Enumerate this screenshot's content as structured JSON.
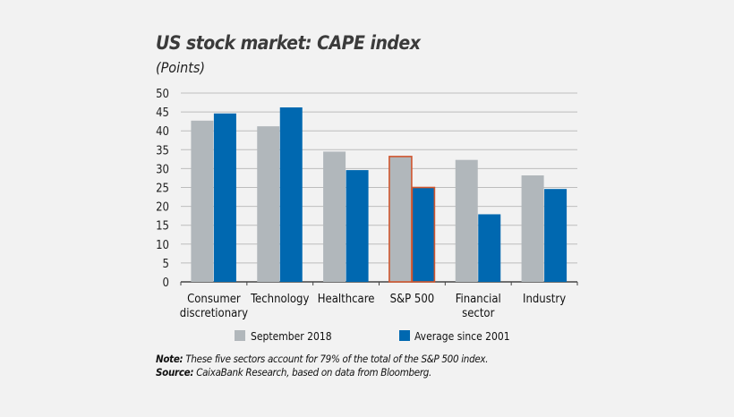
{
  "chart_data": {
    "type": "bar",
    "title": "US stock market: CAPE index",
    "subtitle": "(Points)",
    "categories": [
      [
        "Consumer",
        "discretionary"
      ],
      [
        "Technology"
      ],
      [
        "Healthcare"
      ],
      [
        "S&P 500"
      ],
      [
        "Financial",
        "sector"
      ],
      [
        "Industry"
      ]
    ],
    "series": [
      {
        "name": "September 2018",
        "color": "#b1b7bb",
        "values": [
          42.7,
          41.2,
          34.5,
          33.2,
          32.3,
          28.2
        ]
      },
      {
        "name": "Average since 2001",
        "color": "#0068b0",
        "values": [
          44.6,
          46.2,
          29.6,
          25.0,
          17.9,
          24.6
        ]
      }
    ],
    "highlight_category": "S&P 500",
    "highlight_color": "#d0562f",
    "ylim": [
      0,
      50
    ],
    "yticks": [
      0,
      5,
      10,
      15,
      20,
      25,
      30,
      35,
      40,
      45,
      50
    ],
    "grid": true,
    "legend_placement": "bottom"
  },
  "note": {
    "note_label": "Note:",
    "note_text": " These five sectors account for 79% of the total of the S&P 500 index.",
    "source_label": "Source:",
    "source_text": " CaixaBank Research, based on data from Bloomberg."
  }
}
